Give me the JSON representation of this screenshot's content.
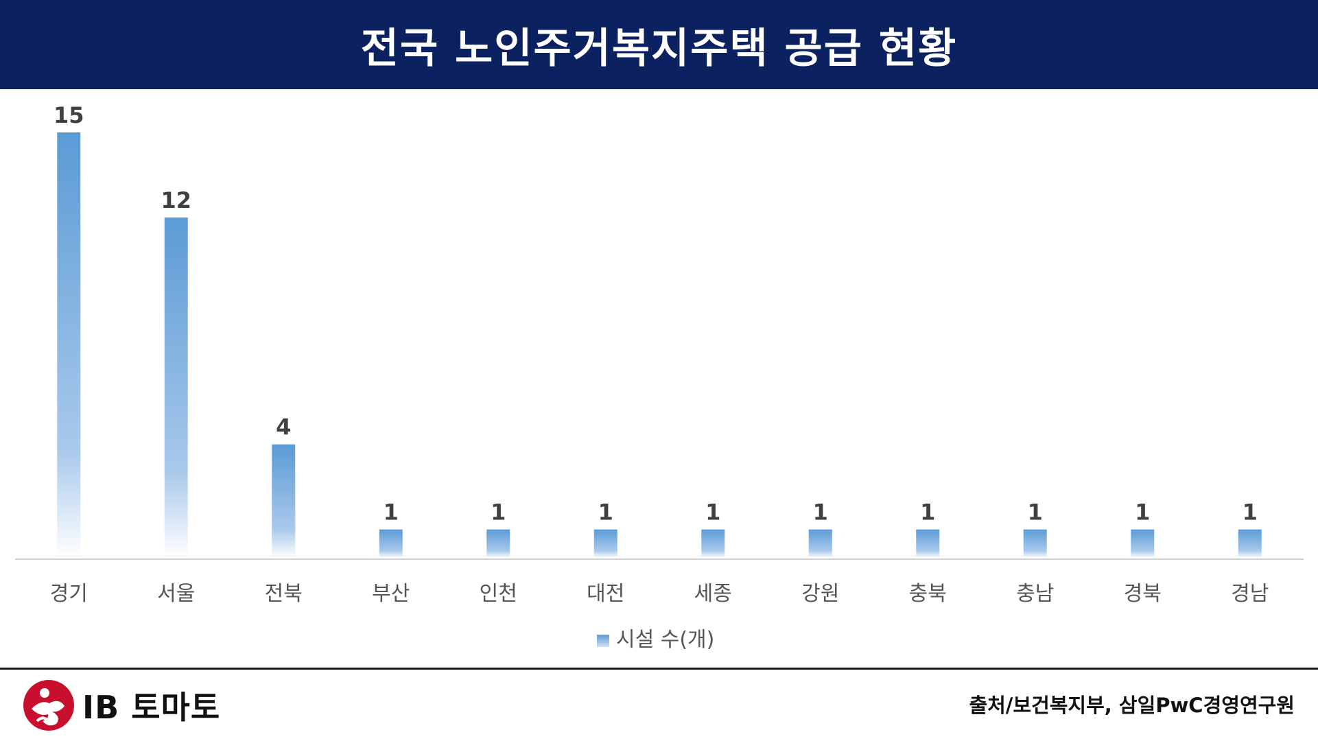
{
  "header": {
    "title": "전국 노인주거복지주택 공급 현황"
  },
  "chart_data": {
    "type": "bar",
    "categories": [
      "경기",
      "서울",
      "전북",
      "부산",
      "인천",
      "대전",
      "세종",
      "강원",
      "충북",
      "충남",
      "경북",
      "경남"
    ],
    "series": [
      {
        "name": "시설 수(개)",
        "values": [
          15,
          12,
          4,
          1,
          1,
          1,
          1,
          1,
          1,
          1,
          1,
          1
        ]
      }
    ],
    "ylim": [
      0,
      15
    ],
    "grid": false,
    "legend": "bottom",
    "data_labels": true
  },
  "colors": {
    "title_bg": "#0b2160",
    "bar": "#5b9bd5",
    "logo_red": "#c8102e"
  },
  "footer": {
    "logo_text": "IB 토마토",
    "source": "출처/보건복지부, 삼일PwC경영연구원"
  }
}
